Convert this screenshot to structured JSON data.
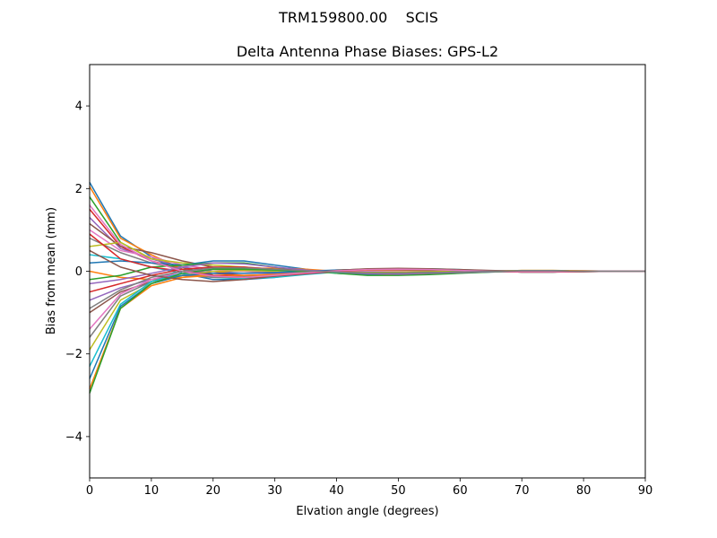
{
  "figure": {
    "suptitle": "TRM159800.00    SCIS"
  },
  "chart_data": {
    "type": "line",
    "title": "Delta Antenna Phase Biases: GPS-L2",
    "xlabel": "Elvation angle (degrees)",
    "ylabel": "Bias from mean (mm)",
    "xlim": [
      0,
      90
    ],
    "ylim": [
      -5,
      5
    ],
    "xticks": [
      0,
      10,
      20,
      30,
      40,
      50,
      60,
      70,
      80,
      90
    ],
    "yticks": [
      -4,
      -2,
      0,
      2,
      4
    ],
    "ytick_labels": [
      "−4",
      "−2",
      "0",
      "2",
      "4"
    ],
    "grid": false,
    "legend": "none",
    "colors": [
      "#1f77b4",
      "#ff7f0e",
      "#2ca02c",
      "#d62728",
      "#9467bd",
      "#8c564b",
      "#e377c2",
      "#7f7f7f",
      "#bcbd22",
      "#17becf"
    ],
    "x": [
      0,
      5,
      10,
      15,
      20,
      25,
      30,
      35,
      40,
      45,
      50,
      55,
      60,
      65,
      70,
      75,
      80,
      85,
      90
    ],
    "series": [
      {
        "values": [
          2.15,
          0.85,
          0.35,
          -0.05,
          -0.2,
          -0.2,
          -0.15,
          -0.05,
          0.02,
          0.05,
          0.06,
          0.05,
          0.03,
          0.0,
          -0.02,
          -0.02,
          0.0,
          0.0,
          0.0
        ]
      },
      {
        "values": [
          2.05,
          0.8,
          0.4,
          0.05,
          -0.15,
          -0.15,
          -0.1,
          -0.03,
          0.03,
          0.05,
          0.05,
          0.04,
          0.02,
          0.0,
          -0.02,
          -0.02,
          -0.01,
          0.0,
          0.0
        ]
      },
      {
        "values": [
          1.8,
          0.7,
          0.3,
          0.1,
          -0.1,
          -0.15,
          -0.1,
          -0.05,
          0.0,
          0.04,
          0.05,
          0.04,
          0.02,
          0.0,
          -0.02,
          -0.02,
          0.0,
          0.0,
          0.0
        ]
      },
      {
        "values": [
          1.5,
          0.6,
          0.25,
          0.05,
          -0.05,
          -0.1,
          -0.08,
          -0.04,
          0.0,
          0.03,
          0.04,
          0.03,
          0.02,
          0.0,
          -0.01,
          -0.01,
          0.0,
          0.0,
          0.0
        ]
      },
      {
        "values": [
          1.3,
          0.55,
          0.3,
          0.1,
          0.0,
          -0.05,
          -0.05,
          -0.03,
          0.01,
          0.03,
          0.03,
          0.03,
          0.02,
          0.0,
          -0.01,
          -0.01,
          0.0,
          0.0,
          0.0
        ]
      },
      {
        "values": [
          1.15,
          0.6,
          0.45,
          0.25,
          0.1,
          0.05,
          0.02,
          0.0,
          -0.02,
          -0.03,
          -0.02,
          -0.01,
          0.0,
          0.01,
          0.01,
          0.0,
          0.0,
          0.0,
          0.0
        ]
      },
      {
        "values": [
          1.0,
          0.5,
          0.35,
          0.15,
          0.05,
          0.0,
          -0.02,
          -0.02,
          0.0,
          0.02,
          0.02,
          0.02,
          0.01,
          0.0,
          0.0,
          0.0,
          0.0,
          0.0,
          0.0
        ]
      },
      {
        "values": [
          0.8,
          0.45,
          0.2,
          0.05,
          -0.1,
          -0.12,
          -0.1,
          -0.05,
          0.0,
          0.03,
          0.05,
          0.04,
          0.03,
          0.0,
          -0.02,
          -0.02,
          0.0,
          0.0,
          0.0
        ]
      },
      {
        "values": [
          0.6,
          0.7,
          0.3,
          0.2,
          0.15,
          0.1,
          0.05,
          0.02,
          -0.02,
          -0.05,
          -0.06,
          -0.05,
          -0.03,
          0.0,
          0.02,
          0.02,
          0.01,
          0.0,
          0.0
        ]
      },
      {
        "values": [
          0.4,
          0.3,
          0.1,
          -0.05,
          -0.15,
          -0.18,
          -0.15,
          -0.08,
          -0.02,
          0.03,
          0.06,
          0.06,
          0.04,
          0.01,
          -0.02,
          -0.02,
          -0.01,
          0.0,
          0.0
        ]
      },
      {
        "values": [
          0.2,
          0.25,
          0.2,
          0.15,
          0.25,
          0.25,
          0.15,
          0.05,
          -0.05,
          -0.08,
          -0.08,
          -0.06,
          -0.04,
          -0.02,
          0.0,
          0.01,
          0.0,
          0.0,
          0.0
        ]
      },
      {
        "values": [
          0.0,
          -0.15,
          -0.2,
          -0.15,
          -0.05,
          0.05,
          0.08,
          0.05,
          0.0,
          -0.05,
          -0.08,
          -0.06,
          -0.03,
          0.0,
          0.02,
          0.02,
          0.01,
          0.0,
          0.0
        ]
      },
      {
        "values": [
          -0.2,
          -0.1,
          0.1,
          0.15,
          0.2,
          0.2,
          0.1,
          0.0,
          -0.05,
          -0.1,
          -0.1,
          -0.08,
          -0.05,
          -0.02,
          0.0,
          0.01,
          0.0,
          0.0,
          0.0
        ]
      },
      {
        "values": [
          -0.5,
          -0.3,
          -0.1,
          0.05,
          0.1,
          0.1,
          0.05,
          0.02,
          0.0,
          -0.02,
          -0.03,
          -0.02,
          -0.01,
          0.0,
          0.0,
          0.0,
          0.0,
          0.0,
          0.0
        ]
      },
      {
        "values": [
          -0.7,
          -0.4,
          -0.2,
          -0.05,
          0.0,
          0.02,
          0.02,
          0.01,
          0.0,
          -0.01,
          -0.02,
          -0.02,
          -0.01,
          0.0,
          0.0,
          0.0,
          0.0,
          0.0,
          0.0
        ]
      },
      {
        "values": [
          -1.0,
          -0.5,
          -0.25,
          -0.1,
          -0.05,
          -0.05,
          -0.03,
          0.0,
          0.02,
          0.03,
          0.03,
          0.02,
          0.01,
          0.0,
          -0.01,
          0.0,
          0.0,
          0.0,
          0.0
        ]
      },
      {
        "values": [
          -1.4,
          -0.55,
          -0.2,
          0.0,
          0.05,
          0.05,
          0.03,
          0.01,
          -0.01,
          -0.02,
          -0.02,
          -0.02,
          -0.01,
          0.0,
          0.0,
          0.0,
          0.0,
          0.0,
          0.0
        ]
      },
      {
        "values": [
          -1.6,
          -0.6,
          -0.25,
          -0.1,
          -0.15,
          -0.15,
          -0.1,
          -0.04,
          0.0,
          0.03,
          0.05,
          0.04,
          0.02,
          0.0,
          -0.01,
          -0.01,
          0.0,
          0.0,
          0.0
        ]
      },
      {
        "values": [
          -1.9,
          -0.7,
          -0.3,
          -0.1,
          0.0,
          0.02,
          0.0,
          -0.02,
          -0.03,
          -0.03,
          -0.02,
          -0.01,
          0.0,
          0.0,
          0.0,
          0.0,
          0.0,
          0.0,
          0.0
        ]
      },
      {
        "values": [
          -2.3,
          -0.8,
          -0.25,
          -0.05,
          0.05,
          0.05,
          0.03,
          0.0,
          -0.03,
          -0.05,
          -0.05,
          -0.04,
          -0.02,
          0.0,
          0.01,
          0.01,
          0.0,
          0.0,
          0.0
        ]
      },
      {
        "values": [
          -2.6,
          -0.85,
          -0.3,
          -0.1,
          -0.05,
          -0.05,
          -0.03,
          0.0,
          0.03,
          0.05,
          0.05,
          0.04,
          0.02,
          0.0,
          -0.01,
          -0.01,
          0.0,
          0.0,
          0.0
        ]
      },
      {
        "values": [
          -2.85,
          -0.9,
          -0.35,
          -0.15,
          -0.1,
          -0.1,
          -0.08,
          -0.04,
          0.0,
          0.03,
          0.04,
          0.04,
          0.02,
          0.0,
          -0.01,
          -0.01,
          0.0,
          0.0,
          0.0
        ]
      },
      {
        "values": [
          -2.95,
          -0.9,
          -0.3,
          -0.05,
          0.05,
          0.05,
          0.03,
          0.0,
          -0.02,
          -0.04,
          -0.04,
          -0.03,
          -0.02,
          0.0,
          0.01,
          0.01,
          0.0,
          0.0,
          0.0
        ]
      },
      {
        "values": [
          0.9,
          0.3,
          0.1,
          0.0,
          -0.1,
          -0.15,
          -0.12,
          -0.06,
          0.0,
          0.04,
          0.06,
          0.05,
          0.03,
          0.0,
          -0.02,
          -0.02,
          -0.01,
          0.0,
          0.0
        ]
      },
      {
        "values": [
          -0.3,
          -0.2,
          -0.05,
          0.1,
          0.2,
          0.18,
          0.1,
          0.03,
          -0.02,
          -0.06,
          -0.07,
          -0.05,
          -0.03,
          -0.01,
          0.01,
          0.01,
          0.0,
          0.0,
          0.0
        ]
      },
      {
        "values": [
          0.5,
          0.1,
          -0.1,
          -0.2,
          -0.25,
          -0.2,
          -0.12,
          -0.04,
          0.02,
          0.06,
          0.07,
          0.06,
          0.04,
          0.02,
          0.0,
          -0.01,
          0.0,
          0.0,
          0.0
        ]
      },
      {
        "values": [
          1.6,
          0.65,
          0.25,
          0.0,
          -0.12,
          -0.15,
          -0.1,
          -0.04,
          0.01,
          0.04,
          0.05,
          0.04,
          0.02,
          0.0,
          -0.01,
          -0.01,
          0.0,
          0.0,
          0.0
        ]
      },
      {
        "values": [
          -0.9,
          -0.45,
          -0.15,
          0.0,
          0.08,
          0.08,
          0.05,
          0.01,
          -0.02,
          -0.04,
          -0.04,
          -0.03,
          -0.02,
          0.0,
          0.01,
          0.01,
          0.0,
          0.0,
          0.0
        ]
      }
    ]
  }
}
